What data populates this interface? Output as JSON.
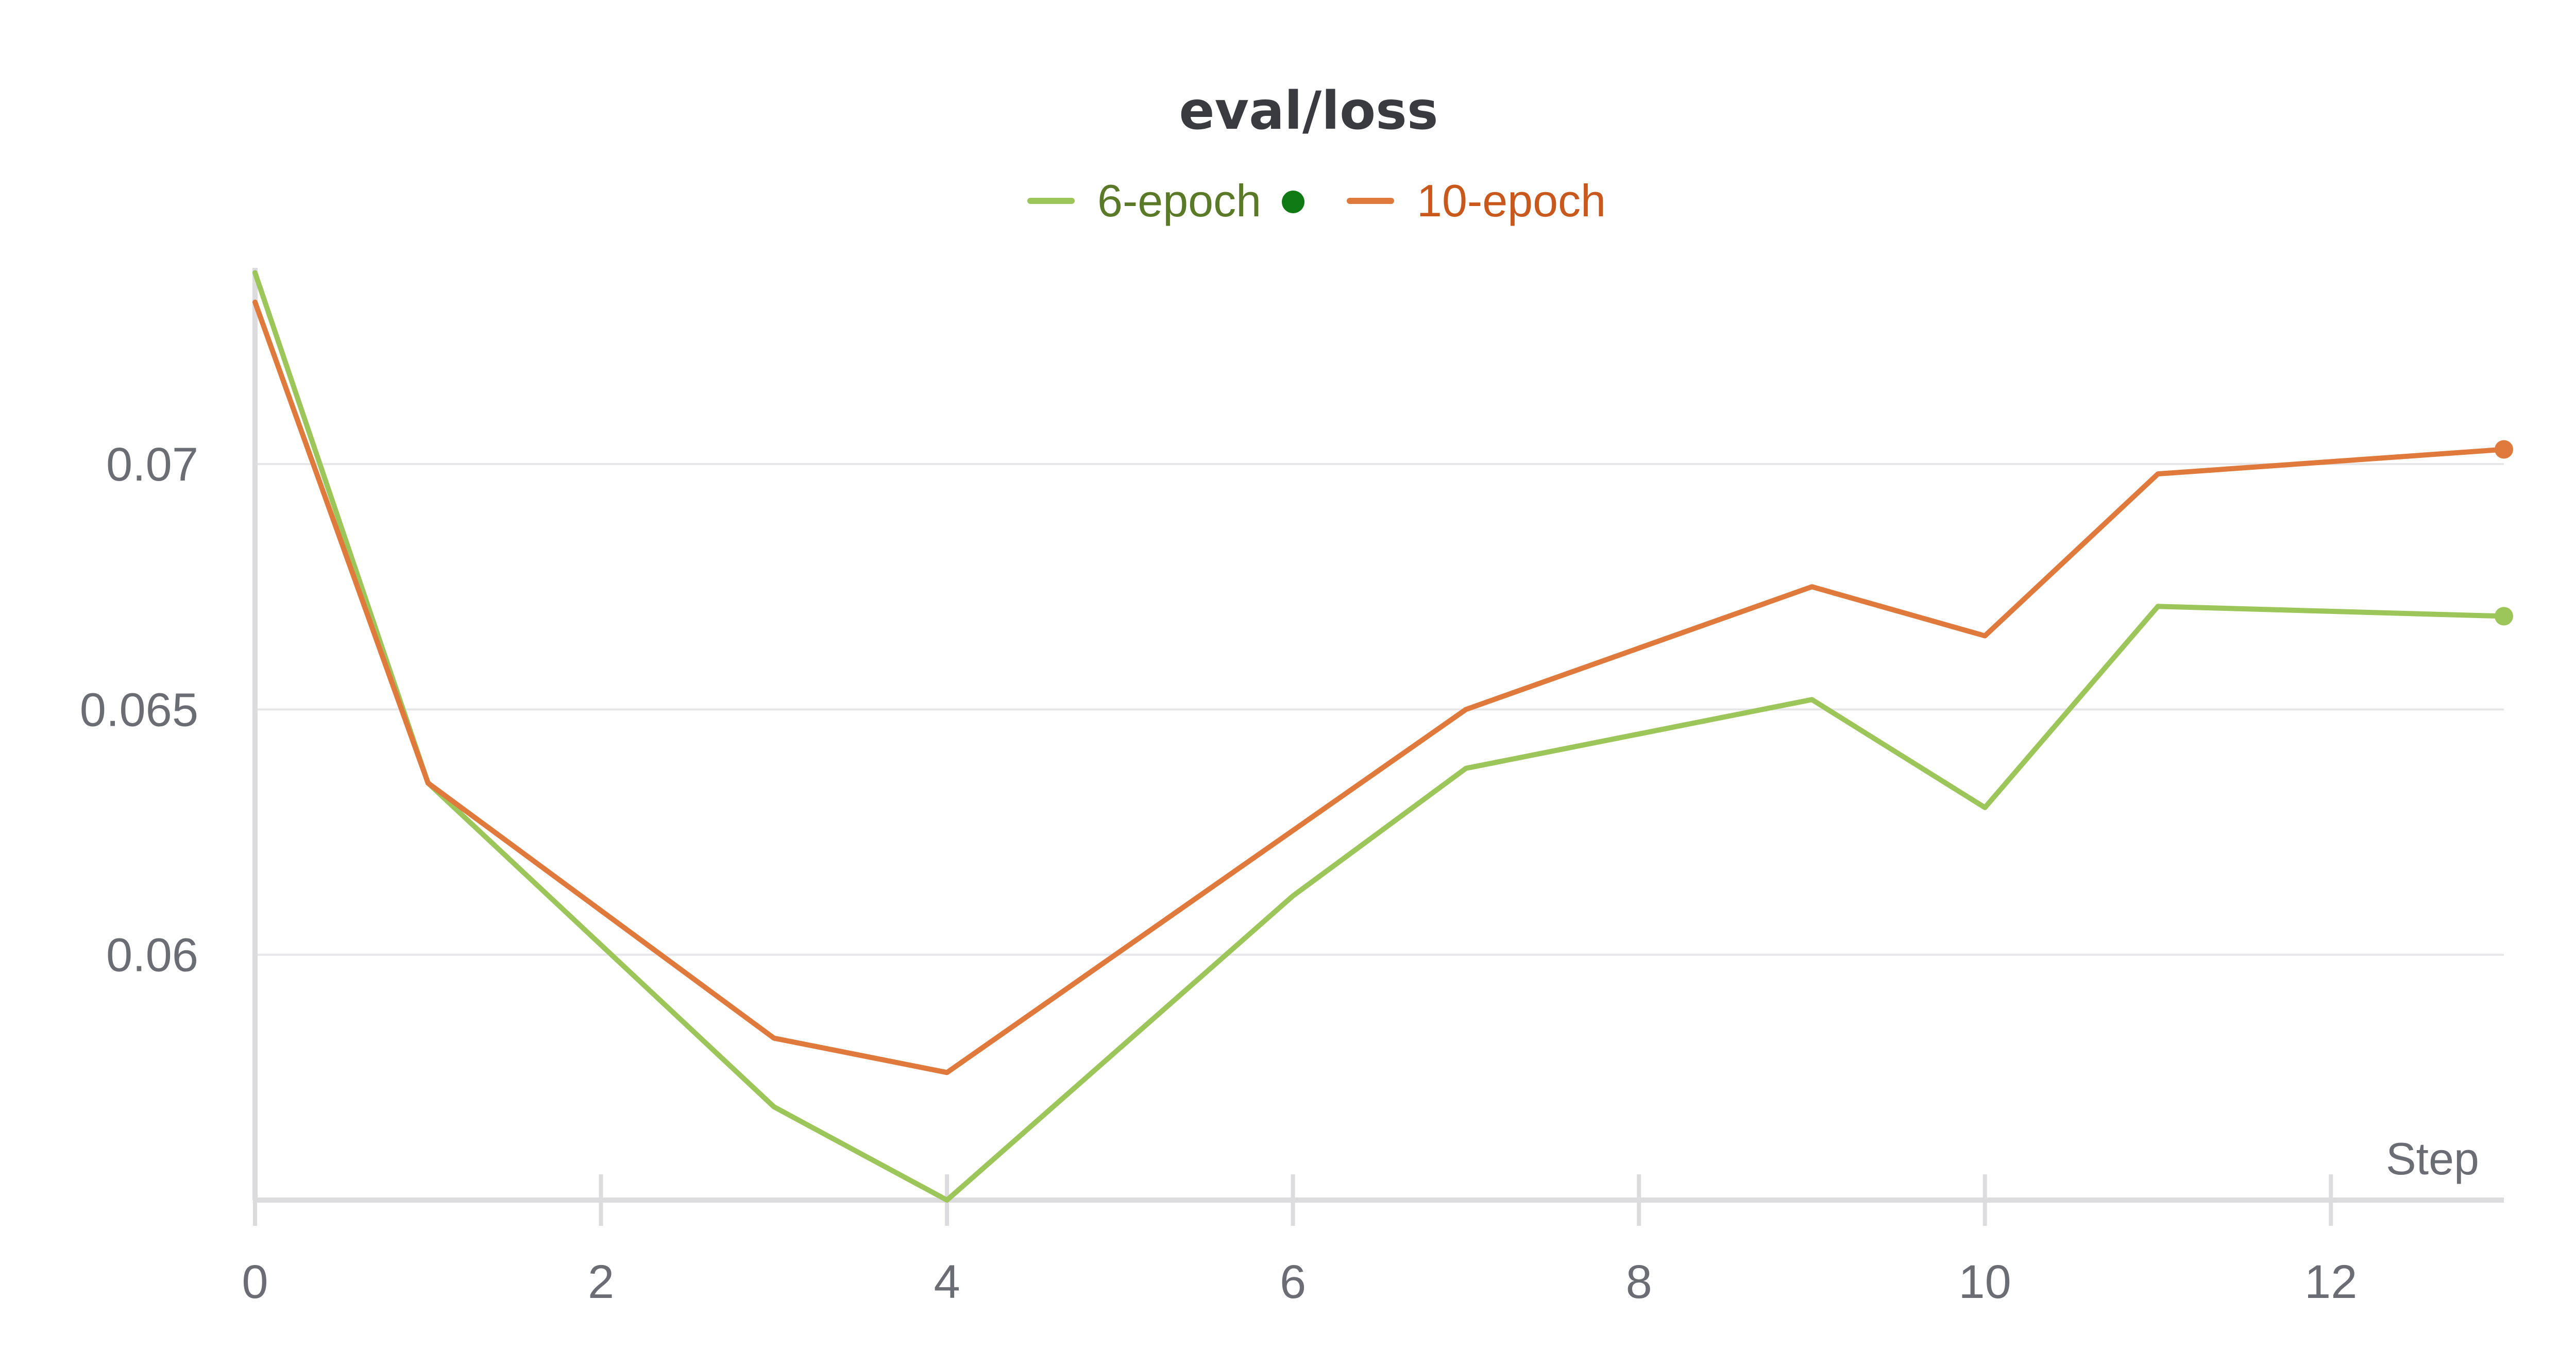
{
  "chart_data": {
    "type": "line",
    "title": "eval/loss",
    "xlabel": "Step",
    "ylabel": "",
    "xlim": [
      0,
      13
    ],
    "ylim": [
      0.055,
      0.074
    ],
    "x_ticks": [
      0,
      2,
      4,
      6,
      8,
      10,
      12
    ],
    "x_tick_labels": [
      "0",
      "2",
      "4",
      "6",
      "8",
      "10",
      "12"
    ],
    "y_ticks": [
      0.06,
      0.065,
      0.07
    ],
    "y_tick_labels": [
      "0.06",
      "0.065",
      "0.07"
    ],
    "grid": "horizontal",
    "legend_position": "top-center",
    "series": [
      {
        "name": "6-epoch",
        "color": "#9cc65a",
        "text_color": "#5a7a28",
        "marker_color": "#0f7a14",
        "x": [
          0,
          1,
          3,
          4,
          6,
          7,
          9,
          10,
          11,
          13
        ],
        "values": [
          0.0739,
          0.0635,
          0.0569,
          0.055,
          0.0612,
          0.0638,
          0.0652,
          0.063,
          0.0671,
          0.0669
        ]
      },
      {
        "name": "10-epoch",
        "color": "#e07a3c",
        "text_color": "#c9581c",
        "x": [
          0,
          1,
          3,
          4,
          7,
          9,
          10,
          11,
          13
        ],
        "values": [
          0.0733,
          0.0635,
          0.0583,
          0.0576,
          0.065,
          0.0675,
          0.0665,
          0.0698,
          0.0703
        ]
      }
    ]
  }
}
